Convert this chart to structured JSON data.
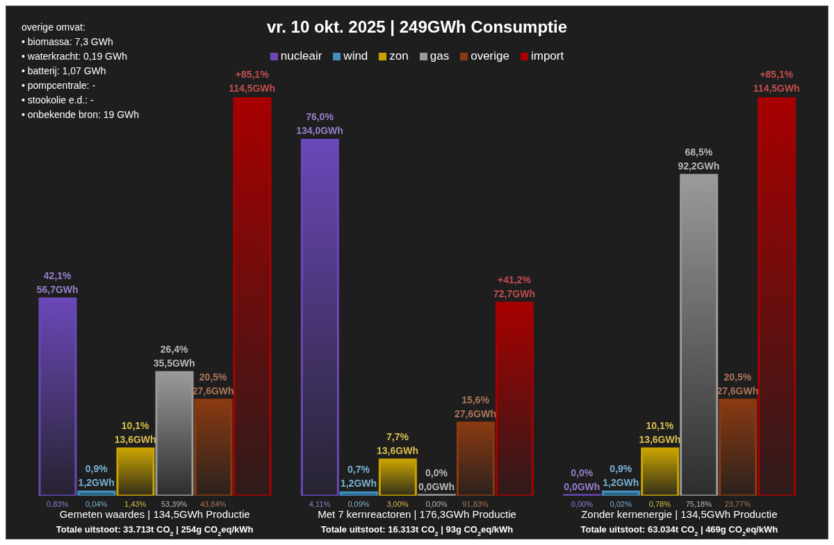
{
  "chart_data": {
    "type": "bar",
    "title": "vr. 10 okt. 2025 | 249GWh Consumptie",
    "categories": [
      "Gemeten waardes | 134,5GWh Productie\nTotale uitstoot: 33.713t CO$_{2}$ | 254g CO$_{2}$eq/kWh",
      "Met 7 kernreactoren | 176,3GWh Productie\nTotale uitstoot: 16.313t CO$_{2}$ | 93g CO$_{2}$eq/kWh",
      "Zonder kernenergie | 134,5GWh Productie\nTotale uitstoot: 63.034t CO$_{2}$ | 469g CO$_{2}$eq/kWh"
    ],
    "series": [
      {
        "name": "nucleair",
        "color": "#6a48b8",
        "values": [
          42.1,
          76.0,
          0.0
        ],
        "value_labels": [
          "42,1%\n56,7GWh",
          "76,0%\n134,0GWh",
          "0,0%\n0,0GWh"
        ]
      },
      {
        "name": "wind",
        "color": "#3f8fbf",
        "values": [
          0.9,
          0.7,
          0.9
        ],
        "value_labels": [
          "0,9%\n1,2GWh",
          "0,7%\n1,2GWh",
          "0,9%\n1,2GWh"
        ]
      },
      {
        "name": "zon",
        "color": "#c9a400",
        "values": [
          10.1,
          7.7,
          10.1
        ],
        "value_labels": [
          "10,1%\n13,6GWh",
          "7,7%\n13,6GWh",
          "10,1%\n13,6GWh"
        ]
      },
      {
        "name": "gas",
        "color": "#9a9a9a",
        "values": [
          26.4,
          0.0,
          68.5
        ],
        "value_labels": [
          "26,4%\n35,5GWh",
          "0,0%\n0,0GWh",
          "68,5%\n92,2GWh"
        ]
      },
      {
        "name": "overige",
        "color": "#8a3a12",
        "values": [
          20.5,
          15.6,
          20.5
        ],
        "value_labels": [
          "20,5%\n27,6GWh",
          "15,6%\n27,6GWh",
          "20,5%\n27,6GWh"
        ]
      },
      {
        "name": "import",
        "color": "#a80000",
        "values": [
          85.1,
          41.2,
          85.1
        ],
        "value_labels": [
          "+85,1%\n114,5GWh",
          "+41,2%\n72,7GWh",
          "+85,1%\n114,5GWh"
        ]
      }
    ],
    "legend": "top",
    "annotations": [
      "overige omvat:",
      "• biomassa: 7,3 GWh",
      "• waterkracht: 0,19 GWh",
      "• batterij: 1,07 GWh",
      "• pompcentrale: -",
      "• stookolie e.d.: -",
      "• onbekende bron: 19 GWh",
      "0,83%",
      "0,04%",
      "1,43%",
      "53,39%",
      "43,84%",
      "4,11%",
      "0,09%",
      "3,00%",
      "0,00%",
      "91,83%",
      "0,00%",
      "0,02%",
      "0,78%",
      "75,18%",
      "23,77%"
    ]
  }
}
